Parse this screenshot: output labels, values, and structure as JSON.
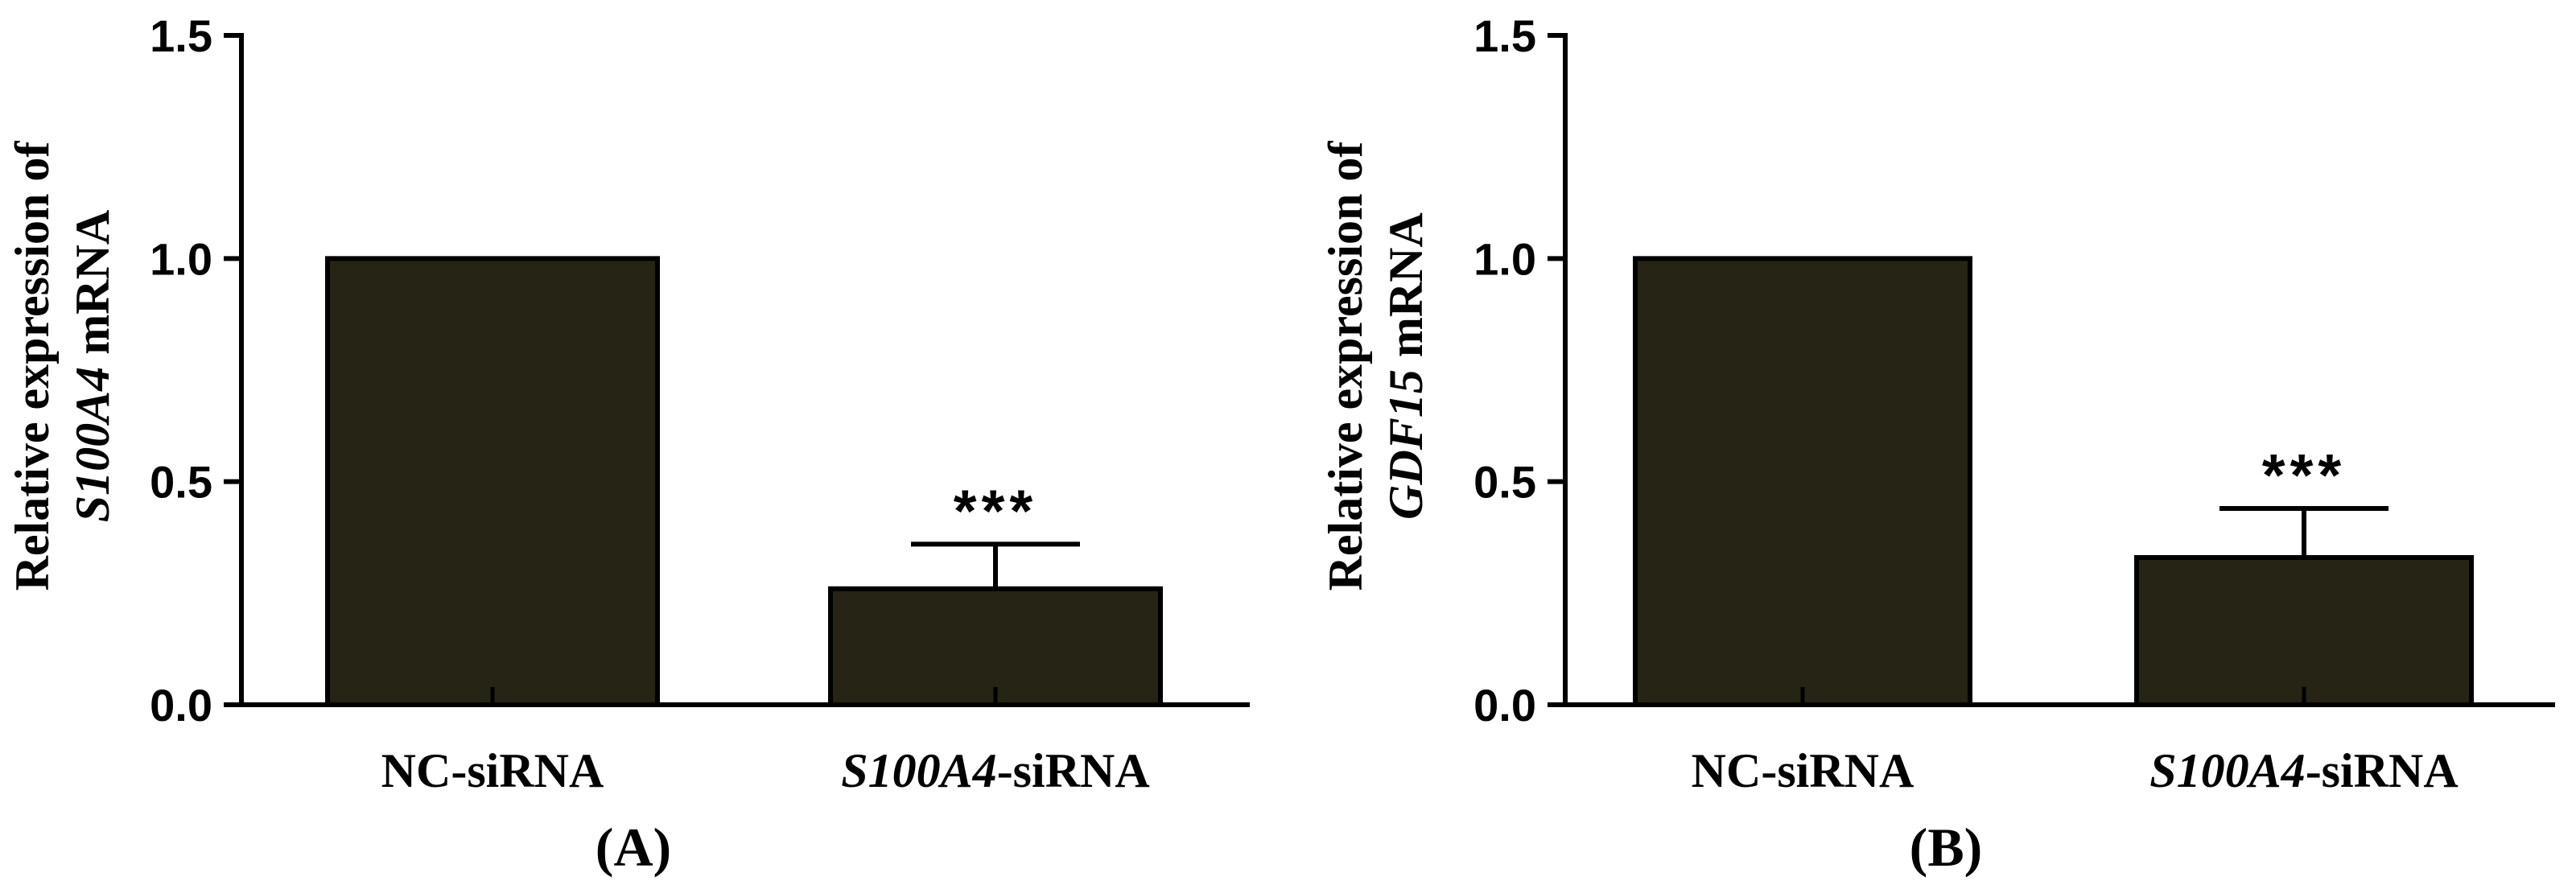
{
  "chart_data": [
    {
      "type": "bar",
      "panel_label": "(A)",
      "categories": [
        {
          "italic": "",
          "plain": "NC-siRNA"
        },
        {
          "italic": "S100A4",
          "plain": "-siRNA"
        }
      ],
      "values": [
        1.0,
        0.26
      ],
      "error_upper": [
        0.0,
        0.1
      ],
      "significance": [
        "",
        "***"
      ],
      "ylabel": {
        "line1": "Relative expression of",
        "italic": "S100A4",
        "rest": " mRNA"
      },
      "ylim": [
        0,
        1.5
      ],
      "yticks": [
        "0.0",
        "0.5",
        "1.0",
        "1.5"
      ],
      "bar_color": "#262414",
      "grid": false
    },
    {
      "type": "bar",
      "panel_label": "(B)",
      "categories": [
        {
          "italic": "",
          "plain": "NC-siRNA"
        },
        {
          "italic": "S100A4",
          "plain": "-siRNA"
        }
      ],
      "values": [
        1.0,
        0.33
      ],
      "error_upper": [
        0.0,
        0.11
      ],
      "significance": [
        "",
        "***"
      ],
      "ylabel": {
        "line1": "Relative expression of",
        "italic": "GDF15",
        "rest": " mRNA"
      },
      "ylim": [
        0,
        1.5
      ],
      "yticks": [
        "0.0",
        "0.5",
        "1.0",
        "1.5"
      ],
      "bar_color": "#262414",
      "grid": false
    }
  ]
}
